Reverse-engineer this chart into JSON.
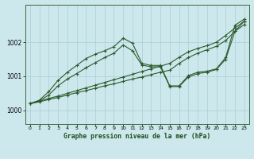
{
  "title": "Graphe pression niveau de la mer (hPa)",
  "bg_color": "#cce8ec",
  "grid_color": "#aacdd4",
  "line_color": "#2d5a2d",
  "xlim": [
    -0.5,
    23.5
  ],
  "ylim": [
    999.6,
    1003.1
  ],
  "yticks": [
    1000,
    1001,
    1002
  ],
  "xticks": [
    0,
    1,
    2,
    3,
    4,
    5,
    6,
    7,
    8,
    9,
    10,
    11,
    12,
    13,
    14,
    15,
    16,
    17,
    18,
    19,
    20,
    21,
    22,
    23
  ],
  "series_x": {
    "a": [
      0,
      1,
      2,
      3,
      4,
      5,
      6,
      7,
      8,
      9,
      10,
      11,
      12,
      13,
      14,
      15,
      16,
      17,
      18,
      19,
      20,
      21,
      22,
      23
    ],
    "b": [
      0,
      1,
      2,
      3,
      4,
      5,
      6,
      7,
      8,
      9,
      10,
      11,
      12,
      13,
      14,
      15,
      16,
      17,
      18,
      19,
      20,
      21,
      22,
      23
    ],
    "c": [
      0,
      1,
      2,
      3,
      4,
      5,
      6,
      7,
      8,
      9,
      10,
      11,
      12,
      13,
      14,
      15,
      16,
      17,
      18,
      19,
      20,
      21,
      22,
      23
    ],
    "d": [
      0,
      1,
      2,
      3,
      4,
      5,
      6,
      7,
      8,
      9,
      10,
      11,
      12,
      13,
      14,
      15,
      16,
      17,
      18,
      19,
      20,
      21,
      22,
      23
    ]
  },
  "series_y": {
    "a": [
      1000.2,
      1000.25,
      1000.32,
      1000.38,
      1000.45,
      1000.52,
      1000.58,
      1000.65,
      1000.72,
      1000.78,
      1000.85,
      1000.92,
      1000.98,
      1001.05,
      1001.12,
      1001.18,
      1001.38,
      1001.55,
      1001.68,
      1001.78,
      1001.88,
      1002.05,
      1002.32,
      1002.52
    ],
    "b": [
      1000.2,
      1000.27,
      1000.35,
      1000.42,
      1000.5,
      1000.58,
      1000.66,
      1000.74,
      1000.82,
      1000.9,
      1000.98,
      1001.06,
      1001.14,
      1001.22,
      1001.3,
      1001.38,
      1001.56,
      1001.72,
      1001.82,
      1001.9,
      1002.0,
      1002.2,
      1002.42,
      1002.62
    ],
    "c": [
      1000.2,
      1000.3,
      1000.55,
      1000.88,
      1001.12,
      1001.32,
      1001.52,
      1001.65,
      1001.75,
      1001.87,
      1002.12,
      1001.97,
      1001.38,
      1001.32,
      1001.32,
      1000.72,
      1000.72,
      1001.02,
      1001.12,
      1001.15,
      1001.22,
      1001.55,
      1002.5,
      1002.68
    ],
    "d": [
      1000.2,
      1000.28,
      1000.45,
      1000.72,
      1000.92,
      1001.08,
      1001.25,
      1001.4,
      1001.55,
      1001.68,
      1001.92,
      1001.75,
      1001.33,
      1001.28,
      1001.28,
      1000.7,
      1000.7,
      1000.98,
      1001.08,
      1001.12,
      1001.2,
      1001.5,
      1002.32,
      1002.62
    ]
  }
}
